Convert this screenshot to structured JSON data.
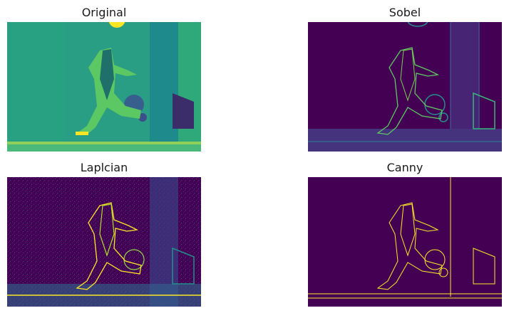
{
  "figure": {
    "panels": [
      {
        "title": "Original"
      },
      {
        "title": "Sobel"
      },
      {
        "title": "Laplcian"
      },
      {
        "title": "Canny"
      }
    ]
  },
  "colors": {
    "viridis_dark": "#440154",
    "viridis_teal": "#21918c",
    "viridis_green": "#35b779",
    "viridis_yellow": "#fde725"
  }
}
